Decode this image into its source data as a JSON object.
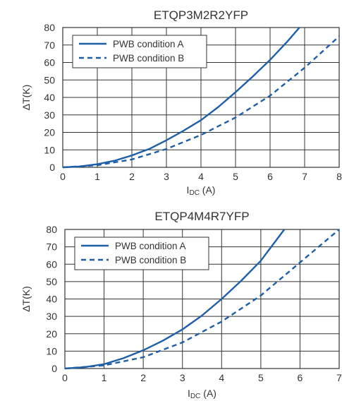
{
  "chart_data": [
    {
      "type": "line",
      "title": "ETQP3M2R2YFP",
      "ylabel": "ΔT(K)",
      "xlabel_main": "I",
      "xlabel_sub": "DC",
      "xlabel_unit": " (A)",
      "xlim": [
        0,
        8
      ],
      "ylim": [
        0,
        80
      ],
      "xticks": [
        "0",
        "1",
        "2",
        "3",
        "4",
        "5",
        "6",
        "7",
        "8"
      ],
      "yticks": [
        "0",
        "10",
        "20",
        "30",
        "40",
        "50",
        "60",
        "70",
        "80"
      ],
      "grid": true,
      "legend_position": "top-left",
      "color": "#1f5fa8",
      "series": [
        {
          "name": "PWB condition A",
          "style": "solid",
          "x": [
            0,
            0.5,
            1,
            1.5,
            2,
            2.5,
            3,
            3.5,
            4,
            4.5,
            5,
            5.5,
            6,
            6.5,
            6.85
          ],
          "y": [
            0,
            0.5,
            1.8,
            3.8,
            6.8,
            10.5,
            15.5,
            21,
            27,
            34.5,
            43,
            52,
            61.5,
            72,
            80
          ]
        },
        {
          "name": "PWB condition B",
          "style": "dashed",
          "x": [
            0,
            1,
            2,
            3,
            4,
            5,
            6,
            7,
            8
          ],
          "y": [
            0,
            1.2,
            4.5,
            10.5,
            18.5,
            28.5,
            41,
            57,
            75
          ]
        }
      ]
    },
    {
      "type": "line",
      "title": "ETQP4M4R7YFP",
      "ylabel": "ΔT(K)",
      "xlabel_main": "I",
      "xlabel_sub": "DC",
      "xlabel_unit": " (A)",
      "xlim": [
        0,
        7
      ],
      "ylim": [
        0,
        80
      ],
      "xticks": [
        "0",
        "1",
        "2",
        "3",
        "4",
        "5",
        "6",
        "7"
      ],
      "yticks": [
        "0",
        "10",
        "20",
        "30",
        "40",
        "50",
        "60",
        "70",
        "80"
      ],
      "grid": true,
      "legend_position": "top-left",
      "color": "#1f5fa8",
      "series": [
        {
          "name": "PWB condition A",
          "style": "solid",
          "x": [
            0,
            0.5,
            1,
            1.5,
            2,
            2.5,
            3,
            3.5,
            4,
            4.5,
            5,
            5.6
          ],
          "y": [
            0,
            0.8,
            2.5,
            6,
            10.5,
            16,
            22.5,
            30.5,
            40,
            50.5,
            62,
            80
          ]
        },
        {
          "name": "PWB condition B",
          "style": "dashed",
          "x": [
            0,
            1,
            2,
            3,
            4,
            5,
            6,
            7
          ],
          "y": [
            0,
            1.8,
            6.5,
            15,
            27,
            42,
            61,
            81
          ]
        }
      ]
    }
  ]
}
